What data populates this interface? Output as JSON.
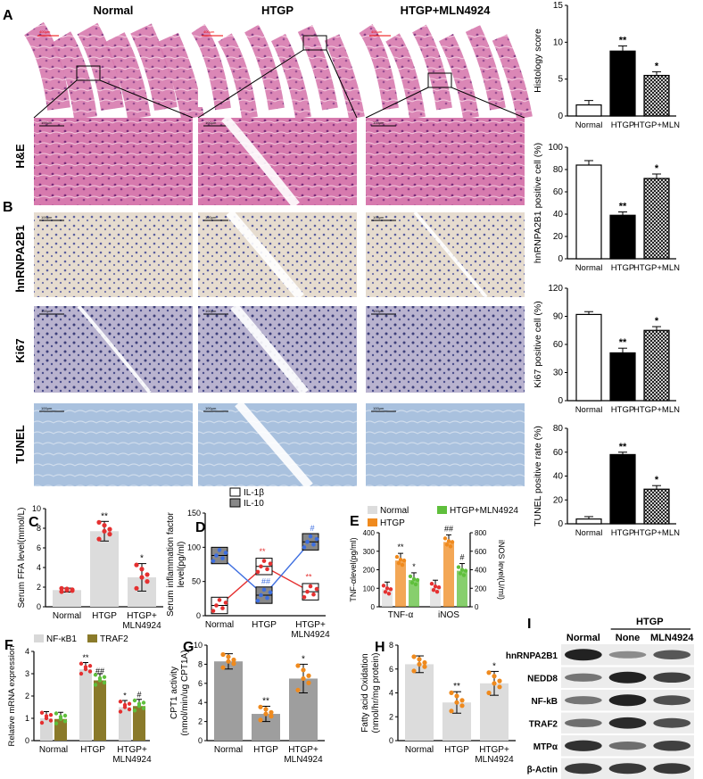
{
  "panel_letters": {
    "A": "A",
    "B": "B",
    "C": "C",
    "D": "D",
    "E": "E",
    "F": "F",
    "G": "G",
    "H": "H",
    "I": "I"
  },
  "micrograph_columns": [
    "Normal",
    "HTGP",
    "HTGP+MLN4924"
  ],
  "micrograph_rows": [
    "H&E",
    "hnRNPA2B1",
    "Ki67",
    "TUNEL"
  ],
  "scale_bar_texts": [
    "400μm",
    "100μm"
  ],
  "colors": {
    "he": "#d86aa6",
    "he_dark": "#9a3c8a",
    "ihc_bg": "#e8ddd0",
    "ihc_nuc": "#5b5f9e",
    "tunel": "#9bb7d8",
    "bar_gray": "#9e9e9e",
    "dots_red": "#e53030",
    "dots_orange": "#ef8a1e",
    "dots_green": "#5fbf3c",
    "traf2": "#8a7a2a",
    "nfkb1": "#d8d8d8",
    "blue": "#3d6ee0",
    "wb_band": "#222"
  },
  "chart_data": [
    {
      "id": "A-right",
      "type": "bar",
      "categories": [
        "Normal",
        "HTGP",
        "HTGP+MLN"
      ],
      "values": [
        1.5,
        8.8,
        5.5
      ],
      "errors": [
        0.6,
        0.7,
        0.5
      ],
      "ylabel": "Histology score",
      "ylim": [
        0,
        15
      ],
      "yticks": [
        0,
        5,
        10,
        15
      ],
      "sig": [
        "",
        "**",
        "*"
      ],
      "fills": [
        "white",
        "black",
        "hatch"
      ]
    },
    {
      "id": "B-hn",
      "type": "bar",
      "categories": [
        "Normal",
        "HTGP",
        "HTGP+MLN"
      ],
      "values": [
        84,
        39,
        72
      ],
      "errors": [
        4,
        3,
        4
      ],
      "ylabel": "hnRNPA2B1 positive cell (%)",
      "ylim": [
        0,
        100
      ],
      "yticks": [
        0,
        20,
        40,
        60,
        80,
        100
      ],
      "sig": [
        "",
        "**",
        "*"
      ],
      "fills": [
        "white",
        "black",
        "hatch"
      ]
    },
    {
      "id": "B-ki",
      "type": "bar",
      "categories": [
        "Normal",
        "HTGP",
        "HTGP+MLN"
      ],
      "values": [
        92,
        51,
        75
      ],
      "errors": [
        3,
        5,
        4
      ],
      "ylabel": "Ki67 positive cell (%)",
      "ylim": [
        0,
        120
      ],
      "yticks": [
        0,
        30,
        60,
        90,
        120
      ],
      "sig": [
        "",
        "**",
        "*"
      ],
      "fills": [
        "white",
        "black",
        "hatch"
      ]
    },
    {
      "id": "B-tu",
      "type": "bar",
      "categories": [
        "Normal",
        "HTGP",
        "HTGP+MLN"
      ],
      "values": [
        4,
        58,
        29
      ],
      "errors": [
        2,
        2,
        3
      ],
      "ylabel": "TUNEL positive rate (%)",
      "ylim": [
        0,
        80
      ],
      "yticks": [
        0,
        20,
        40,
        60,
        80
      ],
      "sig": [
        "",
        "**",
        "*"
      ],
      "fills": [
        "white",
        "black",
        "hatch"
      ]
    },
    {
      "id": "C",
      "type": "bar",
      "categories": [
        "Normal",
        "HTGP",
        "HTGP+ MLN4924"
      ],
      "values": [
        1.7,
        7.7,
        3.0
      ],
      "errors": [
        0.2,
        1.0,
        1.4
      ],
      "ylabel": "Serum FFA level(mmol/L)",
      "ylim": [
        0,
        10
      ],
      "yticks": [
        0,
        2,
        4,
        6,
        8,
        10
      ],
      "sig": [
        "",
        "**",
        "*"
      ]
    },
    {
      "id": "D",
      "type": "box",
      "categories": [
        "Normal",
        "HTGP",
        "HTGP+ MLN4924"
      ],
      "series": [
        {
          "name": "IL-1β",
          "values": [
            15,
            72,
            35
          ]
        },
        {
          "name": "IL-10",
          "values": [
            88,
            30,
            108
          ]
        }
      ],
      "ylabel": "Serum inflammation factor level(pg/ml)",
      "ylim": [
        0,
        150
      ],
      "yticks": [
        0,
        50,
        100,
        150
      ],
      "sig": {
        "IL-1β": [
          "",
          "**",
          "**"
        ],
        "IL-10": [
          "",
          "##",
          "#"
        ]
      }
    },
    {
      "id": "E",
      "type": "bar",
      "categories": [
        "TNF-α",
        "iNOS"
      ],
      "series": [
        {
          "name": "Normal",
          "values": [
            95,
            105
          ]
        },
        {
          "name": "HTGP",
          "values": [
            250,
            350
          ]
        },
        {
          "name": "HTGP+MLN4924",
          "values": [
            145,
            195
          ]
        }
      ],
      "ylabel": "TNF-αlevel(pg/ml)",
      "ylabel2": "iNOS level(U/ml)",
      "ylim": [
        0,
        400
      ],
      "yticks": [
        0,
        100,
        200,
        300,
        400
      ],
      "y2lim": [
        0,
        800
      ],
      "y2ticks": [
        0,
        200,
        400,
        600,
        800
      ],
      "sig": [
        "**",
        "*",
        "##",
        "#"
      ]
    },
    {
      "id": "F",
      "type": "bar",
      "categories": [
        "Normal",
        "HTGP",
        "HTGP+ MLN4924"
      ],
      "series": [
        {
          "name": "NF-κB1",
          "values": [
            1.0,
            3.2,
            1.5
          ]
        },
        {
          "name": "TRAF2",
          "values": [
            0.97,
            2.7,
            1.55
          ]
        }
      ],
      "ylabel": "Relative mRNA expression",
      "ylim": [
        0,
        4
      ],
      "yticks": [
        0,
        1,
        2,
        3,
        4
      ],
      "sig": [
        "**",
        "##",
        "*",
        "#"
      ]
    },
    {
      "id": "G",
      "type": "bar",
      "categories": [
        "Normal",
        "HTGP",
        "HTGP+ MLN4924"
      ],
      "values": [
        8.3,
        2.8,
        6.5
      ],
      "errors": [
        0.8,
        0.8,
        1.5
      ],
      "ylabel": "CPT1 activity (nmol/min/ug CPT1A)",
      "ylim": [
        0,
        10
      ],
      "yticks": [
        0,
        2,
        4,
        6,
        8,
        10
      ],
      "sig": [
        "",
        "**",
        "*"
      ]
    },
    {
      "id": "H",
      "type": "bar",
      "categories": [
        "Normal",
        "HTGP",
        "HTGP+ MLN4924"
      ],
      "values": [
        6.4,
        3.2,
        4.8
      ],
      "errors": [
        0.7,
        0.9,
        1.0
      ],
      "ylabel": "Fatty acid Oxidation (nmol/hr/mg protein)",
      "ylim": [
        0,
        8
      ],
      "yticks": [
        0,
        2,
        4,
        6,
        8
      ],
      "sig": [
        "",
        "**",
        "*"
      ]
    }
  ],
  "western": {
    "header_group": "HTGP",
    "columns": [
      "Normal",
      "None",
      "MLN4924"
    ],
    "rows": [
      {
        "label": "hnRNPA2B1",
        "intensity": [
          1.0,
          0.3,
          0.65
        ]
      },
      {
        "label": "NEDD8",
        "intensity": [
          0.45,
          1.0,
          0.8
        ]
      },
      {
        "label": "NF-kB",
        "intensity": [
          0.45,
          1.0,
          0.7
        ]
      },
      {
        "label": "TRAF2",
        "intensity": [
          0.5,
          0.95,
          0.7
        ]
      },
      {
        "label": "MTPα",
        "intensity": [
          0.9,
          0.5,
          0.8
        ]
      },
      {
        "label": "β-Actin",
        "intensity": [
          0.85,
          0.85,
          0.85
        ]
      }
    ]
  }
}
